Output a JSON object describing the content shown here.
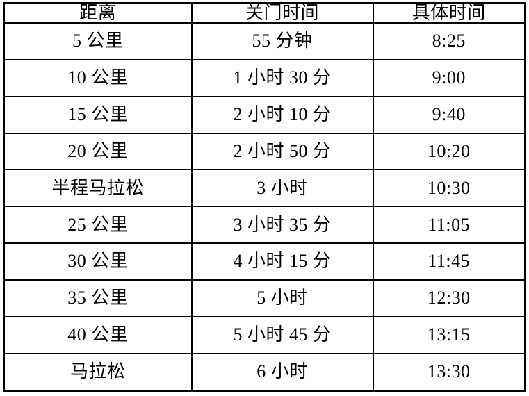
{
  "table": {
    "headers": [
      "距离",
      "关门时间",
      "具体时间"
    ],
    "rows": [
      [
        "5 公里",
        "55 分钟",
        "8:25"
      ],
      [
        "10 公里",
        "1 小时 30 分",
        "9:00"
      ],
      [
        "15 公里",
        "2 小时 10 分",
        "9:40"
      ],
      [
        "20 公里",
        "2 小时 50 分",
        "10:20"
      ],
      [
        "半程马拉松",
        "3 小时",
        "10:30"
      ],
      [
        "25 公里",
        "3 小时 35 分",
        "11:05"
      ],
      [
        "30 公里",
        "4 小时 15 分",
        "11:45"
      ],
      [
        "35 公里",
        "5 小时",
        "12:30"
      ],
      [
        "40 公里",
        "5 小时 45 分",
        "13:15"
      ],
      [
        "马拉松",
        "6 小时",
        "13:30"
      ]
    ],
    "colors": {
      "border": "#000000",
      "text": "#000000",
      "background": "#ffffff"
    }
  },
  "chart_data": {
    "type": "table",
    "title": "",
    "columns": [
      "距离",
      "关门时间",
      "具体时间"
    ],
    "rows": [
      [
        "5 公里",
        "55 分钟",
        "8:25"
      ],
      [
        "10 公里",
        "1 小时 30 分",
        "9:00"
      ],
      [
        "15 公里",
        "2 小时 10 分",
        "9:40"
      ],
      [
        "20 公里",
        "2 小时 50 分",
        "10:20"
      ],
      [
        "半程马拉松",
        "3 小时",
        "10:30"
      ],
      [
        "25 公里",
        "3 小时 35 分",
        "11:05"
      ],
      [
        "30 公里",
        "4 小时 15 分",
        "11:45"
      ],
      [
        "35 公里",
        "5 小时",
        "12:30"
      ],
      [
        "40 公里",
        "5 小时 45 分",
        "13:15"
      ],
      [
        "马拉松",
        "6 小时",
        "13:30"
      ]
    ]
  }
}
